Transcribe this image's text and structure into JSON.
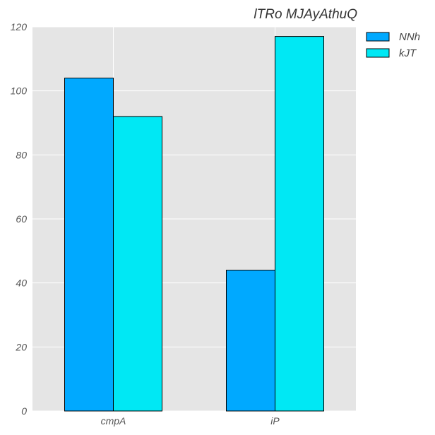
{
  "chart_data": {
    "type": "bar",
    "title": "lTRo MJAyAthuQ",
    "xlabel": "",
    "ylabel": "",
    "categories": [
      "cmpA",
      "iP"
    ],
    "series": [
      {
        "name": "NNh",
        "values": [
          104,
          44
        ],
        "color": "#00a9ff"
      },
      {
        "name": "kJT",
        "values": [
          92,
          117
        ],
        "color": "#00e8f4"
      }
    ],
    "ylim": [
      0,
      120
    ],
    "yticks": [
      0,
      20,
      40,
      60,
      80,
      100,
      120
    ],
    "grid": true,
    "legend_position": "outside-top-right",
    "background": "#e5e5e5"
  }
}
